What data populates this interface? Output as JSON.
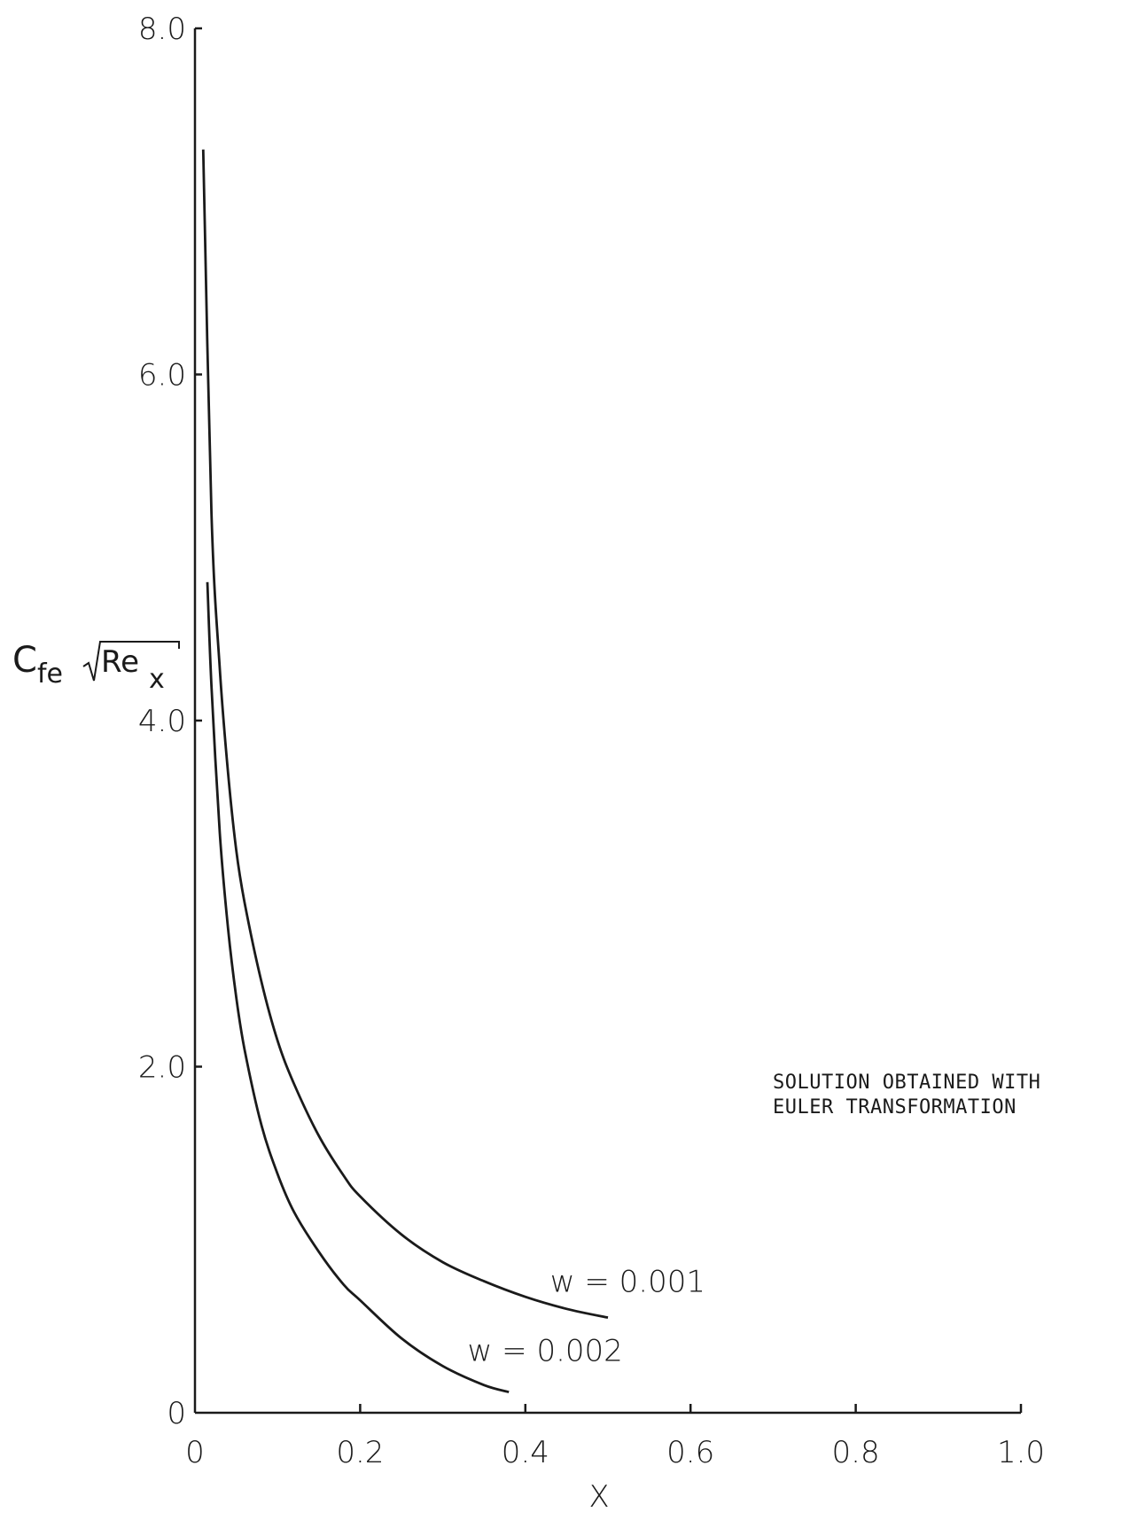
{
  "chart_data": {
    "type": "line",
    "xlabel": "X",
    "ylabel": {
      "main": "C",
      "main_sub": "fe",
      "root": "Re",
      "root_sub": "x"
    },
    "xlim": [
      0,
      1.0
    ],
    "ylim": [
      0,
      8.0
    ],
    "x_ticks": [
      {
        "value": 0,
        "label": "0"
      },
      {
        "value": 0.2,
        "label": "0.2"
      },
      {
        "value": 0.4,
        "label": "0.4"
      },
      {
        "value": 0.6,
        "label": "0.6"
      },
      {
        "value": 0.8,
        "label": "0.8"
      },
      {
        "value": 1.0,
        "label": "1.0"
      }
    ],
    "y_ticks": [
      {
        "value": 0,
        "label": "0"
      },
      {
        "value": 2.0,
        "label": "2.0"
      },
      {
        "value": 4.0,
        "label": "4.0"
      },
      {
        "value": 6.0,
        "label": "6.0"
      },
      {
        "value": 8.0,
        "label": "8.0"
      }
    ],
    "grid": false,
    "series": [
      {
        "name": "w = 0.001",
        "x": [
          0.01,
          0.02,
          0.03,
          0.04,
          0.05,
          0.06,
          0.08,
          0.1,
          0.12,
          0.15,
          0.18,
          0.2,
          0.25,
          0.3,
          0.35,
          0.4,
          0.45,
          0.5
        ],
        "y": [
          7.3,
          5.2,
          4.3,
          3.7,
          3.25,
          2.95,
          2.5,
          2.15,
          1.9,
          1.6,
          1.37,
          1.25,
          1.03,
          0.87,
          0.76,
          0.67,
          0.6,
          0.55
        ]
      },
      {
        "name": "w = 0.002",
        "x": [
          0.015,
          0.02,
          0.03,
          0.04,
          0.05,
          0.06,
          0.08,
          0.1,
          0.12,
          0.15,
          0.18,
          0.2,
          0.25,
          0.3,
          0.35,
          0.38
        ],
        "y": [
          4.8,
          4.2,
          3.35,
          2.8,
          2.4,
          2.1,
          1.67,
          1.38,
          1.16,
          0.93,
          0.74,
          0.65,
          0.43,
          0.27,
          0.16,
          0.12
        ]
      }
    ],
    "annotations": [
      {
        "text": "w = 0.001",
        "x": 0.43,
        "y": 0.7
      },
      {
        "text": "w = 0.002",
        "x": 0.33,
        "y": 0.3
      }
    ],
    "note": [
      "SOLUTION OBTAINED WITH",
      "EULER TRANSFORMATION"
    ],
    "colors": {
      "ink": "#1a1a1a",
      "background": "#ffffff"
    }
  }
}
